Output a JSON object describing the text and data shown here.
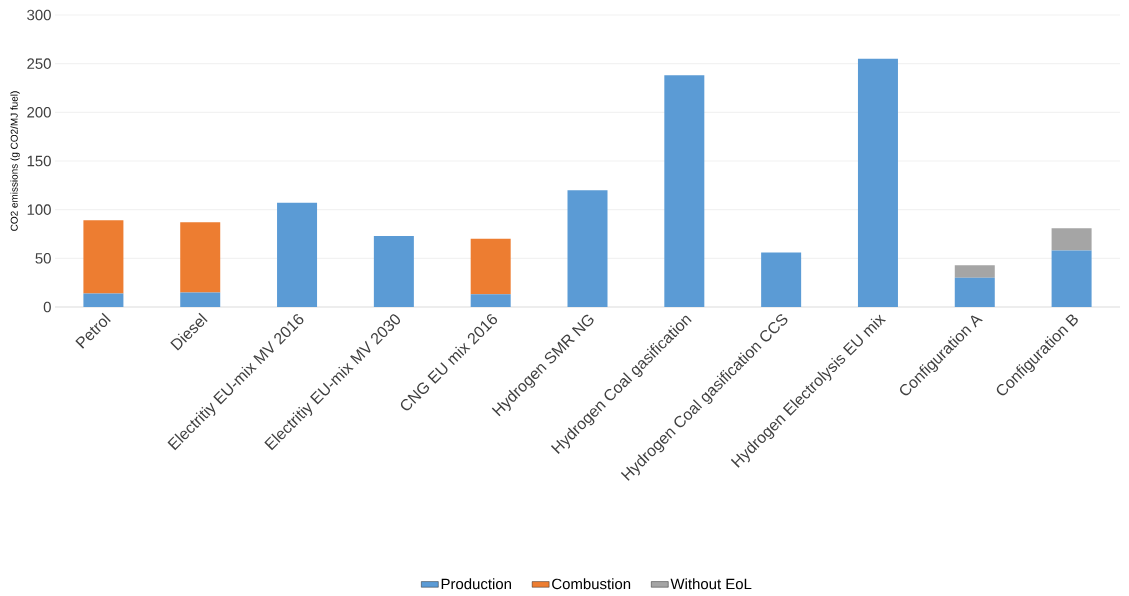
{
  "chart_data": {
    "type": "bar",
    "stacked": true,
    "ylabel": "CO2 emissions (g CO2/MJ fuel)",
    "categories": [
      "Petrol",
      "Diesel",
      "Electritiy EU-mix MV 2016",
      "Electritiy EU-mix MV 2030",
      "CNG EU mix 2016",
      "Hydrogen SMR NG",
      "Hydrogen Coal gasification",
      "Hydrogen Coal gasification CCS",
      "Hydrogen Electrolysis EU mix",
      "Configuration A",
      "Configuration B"
    ],
    "series": [
      {
        "name": "Production",
        "color": "#5b9bd5",
        "values": [
          14,
          15,
          107,
          73,
          13,
          120,
          238,
          56,
          255,
          30,
          58
        ]
      },
      {
        "name": "Combustion",
        "color": "#ed7d31",
        "values": [
          75,
          72,
          null,
          null,
          57,
          null,
          null,
          null,
          null,
          null,
          null
        ]
      },
      {
        "name": "Without EoL",
        "color": "#a5a5a5",
        "values": [
          null,
          null,
          null,
          null,
          null,
          null,
          null,
          null,
          null,
          13,
          23
        ]
      }
    ],
    "ylim": [
      0,
      300
    ],
    "yticks": [
      0,
      50,
      100,
      150,
      200,
      250,
      300
    ],
    "grid": "y",
    "legend": "bottom"
  }
}
